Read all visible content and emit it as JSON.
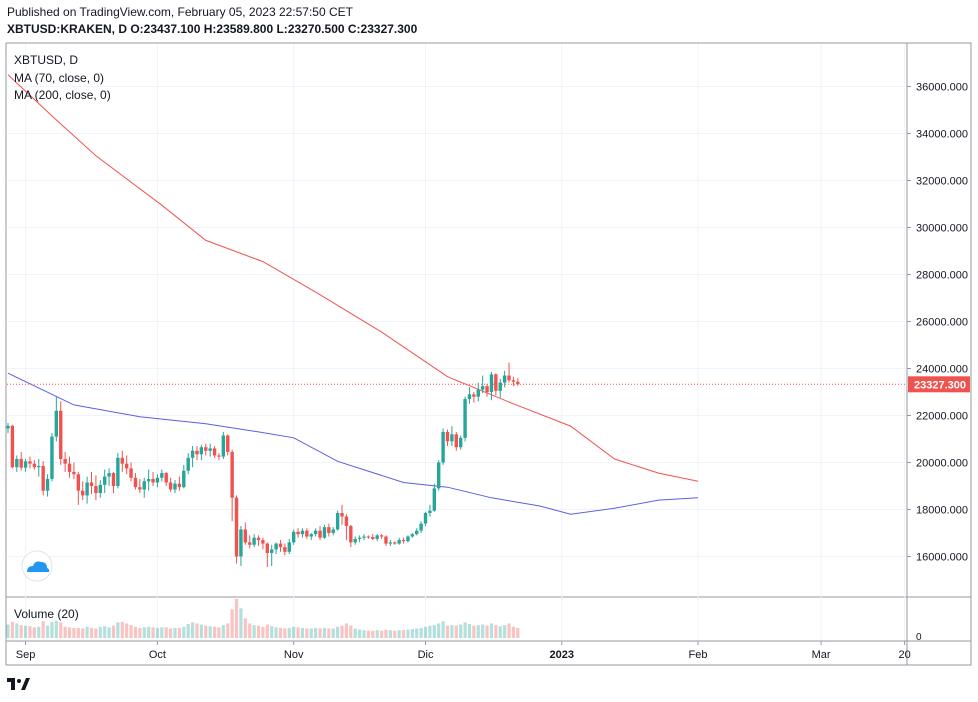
{
  "header": {
    "published": "Published on TradingView.com, February 05, 2023 22:57:50 CET",
    "symbol_line": "XBTUSD:KRAKEN, D",
    "ohlc": {
      "O": "23437.100",
      "H": "23589.800",
      "L": "23270.500",
      "C": "23327.300"
    }
  },
  "chart_data": {
    "type": "candlestick",
    "symbol_label": "XBTUSD, D",
    "indicators": [
      "MA (70, close, 0)",
      "MA (200, close, 0)"
    ],
    "volume_label": "Volume (20)",
    "volume_axis_label": "0",
    "last_price_label": "23327.300",
    "last_price": 23327.3,
    "ylim": [
      14500,
      37500
    ],
    "y_ticks": [
      16000,
      18000,
      20000,
      22000,
      24000,
      26000,
      28000,
      30000,
      32000,
      34000,
      36000
    ],
    "y_tick_labels": [
      "16000.000",
      "18000.000",
      "20000.000",
      "22000.000",
      "24000.000",
      "26000.000",
      "28000.000",
      "30000.000",
      "32000.000",
      "34000.000",
      "36000.000"
    ],
    "x_ticks": [
      {
        "label": "Sep",
        "day": 4
      },
      {
        "label": "Oct",
        "day": 34
      },
      {
        "label": "Nov",
        "day": 65
      },
      {
        "label": "Dic",
        "day": 95
      },
      {
        "label": "2023",
        "day": 126
      },
      {
        "label": "Feb",
        "day": 157
      },
      {
        "label": "Mar",
        "day": 185
      },
      {
        "label": "20",
        "day": 204
      }
    ],
    "candles": [
      [
        21450,
        21680,
        21250,
        21560
      ],
      [
        21560,
        21600,
        19750,
        19800
      ],
      [
        19800,
        20300,
        19600,
        20150
      ],
      [
        20150,
        20450,
        19650,
        19780
      ],
      [
        19780,
        20150,
        19600,
        20050
      ],
      [
        20050,
        20250,
        19750,
        19950
      ],
      [
        19950,
        20100,
        19700,
        19800
      ],
      [
        19800,
        20150,
        19400,
        19850
      ],
      [
        19850,
        20050,
        18600,
        18800
      ],
      [
        18800,
        19500,
        18550,
        19300
      ],
      [
        19300,
        21250,
        19200,
        21100
      ],
      [
        21100,
        22800,
        20900,
        22200
      ],
      [
        22200,
        22600,
        19900,
        20150
      ],
      [
        20150,
        20450,
        19600,
        19950
      ],
      [
        19950,
        20250,
        19350,
        19600
      ],
      [
        19600,
        20000,
        19300,
        19500
      ],
      [
        19500,
        19600,
        18200,
        18800
      ],
      [
        18800,
        19200,
        18400,
        18600
      ],
      [
        18600,
        19400,
        18250,
        19150
      ],
      [
        19150,
        19600,
        18650,
        19000
      ],
      [
        19000,
        19450,
        18400,
        18700
      ],
      [
        18700,
        19250,
        18500,
        19050
      ],
      [
        19050,
        19700,
        18700,
        19400
      ],
      [
        19400,
        19750,
        19000,
        19550
      ],
      [
        19550,
        19600,
        18700,
        19000
      ],
      [
        19000,
        20400,
        18900,
        20200
      ],
      [
        20200,
        20500,
        19600,
        19950
      ],
      [
        19950,
        20300,
        19500,
        19750
      ],
      [
        19750,
        20000,
        19200,
        19350
      ],
      [
        19350,
        19550,
        18850,
        18950
      ],
      [
        18950,
        19300,
        18700,
        18850
      ],
      [
        18850,
        19350,
        18500,
        19200
      ],
      [
        19200,
        19700,
        18800,
        19300
      ],
      [
        19300,
        19600,
        19000,
        19150
      ],
      [
        19150,
        19500,
        18950,
        19350
      ],
      [
        19350,
        19700,
        19200,
        19550
      ],
      [
        19550,
        19600,
        19000,
        19150
      ],
      [
        19150,
        19350,
        18750,
        18850
      ],
      [
        18850,
        19250,
        18700,
        19100
      ],
      [
        19100,
        19400,
        18800,
        18950
      ],
      [
        18950,
        19900,
        18900,
        19650
      ],
      [
        19650,
        20400,
        19500,
        20200
      ],
      [
        20200,
        20700,
        19800,
        20500
      ],
      [
        20500,
        20700,
        20100,
        20350
      ],
      [
        20350,
        20750,
        20100,
        20650
      ],
      [
        20650,
        20800,
        20300,
        20500
      ],
      [
        20500,
        20800,
        20250,
        20600
      ],
      [
        20600,
        20700,
        20200,
        20300
      ],
      [
        20300,
        20400,
        20100,
        20250
      ],
      [
        20250,
        21300,
        20150,
        21150
      ],
      [
        21150,
        21200,
        20300,
        20450
      ],
      [
        20450,
        20550,
        17500,
        18500
      ],
      [
        18500,
        18600,
        15700,
        16000
      ],
      [
        16000,
        17300,
        15600,
        17150
      ],
      [
        17150,
        17450,
        16500,
        16600
      ],
      [
        16600,
        16900,
        16350,
        16500
      ],
      [
        16500,
        16950,
        16400,
        16800
      ],
      [
        16800,
        16900,
        16450,
        16700
      ],
      [
        16700,
        16800,
        16300,
        16550
      ],
      [
        16550,
        16600,
        15550,
        16150
      ],
      [
        16150,
        16500,
        15600,
        16300
      ],
      [
        16300,
        16600,
        16100,
        16550
      ],
      [
        16550,
        16700,
        16200,
        16400
      ],
      [
        16400,
        16550,
        16050,
        16200
      ],
      [
        16200,
        16750,
        16100,
        16600
      ],
      [
        16600,
        17150,
        16500,
        17050
      ],
      [
        17050,
        17200,
        16800,
        16950
      ],
      [
        16950,
        17200,
        16800,
        17100
      ],
      [
        17100,
        17200,
        16750,
        16850
      ],
      [
        16850,
        17000,
        16700,
        16950
      ],
      [
        16950,
        17200,
        16850,
        17100
      ],
      [
        17100,
        17300,
        16700,
        16800
      ],
      [
        16800,
        17350,
        16750,
        17250
      ],
      [
        17250,
        17400,
        16850,
        17000
      ],
      [
        17000,
        17250,
        16900,
        17150
      ],
      [
        17150,
        17950,
        17100,
        17850
      ],
      [
        17850,
        18200,
        17350,
        17700
      ],
      [
        17700,
        17800,
        16700,
        17300
      ],
      [
        17300,
        17350,
        16400,
        16600
      ],
      [
        16600,
        16850,
        16500,
        16750
      ],
      [
        16750,
        16900,
        16600,
        16800
      ],
      [
        16800,
        16950,
        16700,
        16850
      ],
      [
        16850,
        16900,
        16750,
        16830
      ],
      [
        16830,
        16950,
        16700,
        16750
      ],
      [
        16750,
        16950,
        16650,
        16900
      ],
      [
        16900,
        16950,
        16750,
        16850
      ],
      [
        16850,
        16900,
        16450,
        16550
      ],
      [
        16550,
        16700,
        16450,
        16600
      ],
      [
        16600,
        16650,
        16500,
        16550
      ],
      [
        16550,
        16800,
        16500,
        16700
      ],
      [
        16700,
        16800,
        16550,
        16650
      ],
      [
        16650,
        16900,
        16600,
        16850
      ],
      [
        16850,
        17000,
        16800,
        16950
      ],
      [
        16950,
        17200,
        16900,
        17100
      ],
      [
        17100,
        17500,
        17000,
        17400
      ],
      [
        17400,
        17900,
        17300,
        17850
      ],
      [
        17850,
        18200,
        17700,
        17950
      ],
      [
        17950,
        19100,
        17900,
        18900
      ],
      [
        18900,
        20100,
        18800,
        20000
      ],
      [
        20000,
        21450,
        19900,
        21300
      ],
      [
        21300,
        21400,
        20700,
        20900
      ],
      [
        20900,
        21550,
        20700,
        21200
      ],
      [
        21200,
        21300,
        20500,
        20650
      ],
      [
        20650,
        21150,
        20550,
        21050
      ],
      [
        21050,
        22800,
        20900,
        22700
      ],
      [
        22700,
        23200,
        22500,
        22900
      ],
      [
        22900,
        23000,
        22550,
        22800
      ],
      [
        22800,
        23400,
        22600,
        23100
      ],
      [
        23100,
        23700,
        22950,
        23250
      ],
      [
        23250,
        23350,
        22800,
        23000
      ],
      [
        23000,
        23850,
        22650,
        23750
      ],
      [
        23750,
        23800,
        22850,
        23050
      ],
      [
        23050,
        23550,
        22750,
        23400
      ],
      [
        23400,
        23900,
        23200,
        23700
      ],
      [
        23700,
        24250,
        23400,
        23500
      ],
      [
        23500,
        23650,
        23250,
        23437.1
      ],
      [
        23437.1,
        23589.8,
        23270.5,
        23327.3
      ]
    ],
    "volumes": [
      48,
      58,
      52,
      46,
      44,
      42,
      38,
      40,
      60,
      44,
      58,
      62,
      56,
      40,
      38,
      36,
      36,
      34,
      40,
      36,
      34,
      40,
      42,
      38,
      44,
      56,
      58,
      52,
      46,
      40,
      36,
      38,
      40,
      38,
      36,
      38,
      38,
      34,
      36,
      36,
      40,
      50,
      56,
      52,
      48,
      44,
      42,
      40,
      38,
      46,
      52,
      102,
      140,
      106,
      70,
      52,
      46,
      44,
      40,
      48,
      42,
      38,
      36,
      34,
      36,
      40,
      38,
      36,
      34,
      34,
      36,
      34,
      36,
      34,
      34,
      40,
      44,
      52,
      44,
      34,
      30,
      28,
      26,
      26,
      28,
      26,
      30,
      28,
      26,
      28,
      28,
      30,
      32,
      34,
      36,
      40,
      44,
      46,
      52,
      60,
      44,
      46,
      44,
      48,
      56,
      50,
      44,
      46,
      48,
      44,
      52,
      46,
      42,
      46,
      52,
      40,
      36
    ],
    "ma70": [
      [
        0,
        23800
      ],
      [
        15,
        22450
      ],
      [
        30,
        21950
      ],
      [
        45,
        21650
      ],
      [
        57,
        21300
      ],
      [
        65,
        21050
      ],
      [
        75,
        20050
      ],
      [
        90,
        19150
      ],
      [
        100,
        18950
      ],
      [
        110,
        18500
      ],
      [
        121,
        18150
      ],
      [
        128,
        17800
      ],
      [
        138,
        18050
      ],
      [
        148,
        18400
      ],
      [
        157,
        18500
      ]
    ],
    "ma200": [
      [
        0,
        36500
      ],
      [
        10,
        34750
      ],
      [
        20,
        33050
      ],
      [
        35,
        30950
      ],
      [
        45,
        29450
      ],
      [
        58,
        28550
      ],
      [
        70,
        27250
      ],
      [
        85,
        25550
      ],
      [
        100,
        23650
      ],
      [
        115,
        22500
      ],
      [
        128,
        21550
      ],
      [
        138,
        20150
      ],
      [
        148,
        19550
      ],
      [
        157,
        19200
      ]
    ]
  }
}
